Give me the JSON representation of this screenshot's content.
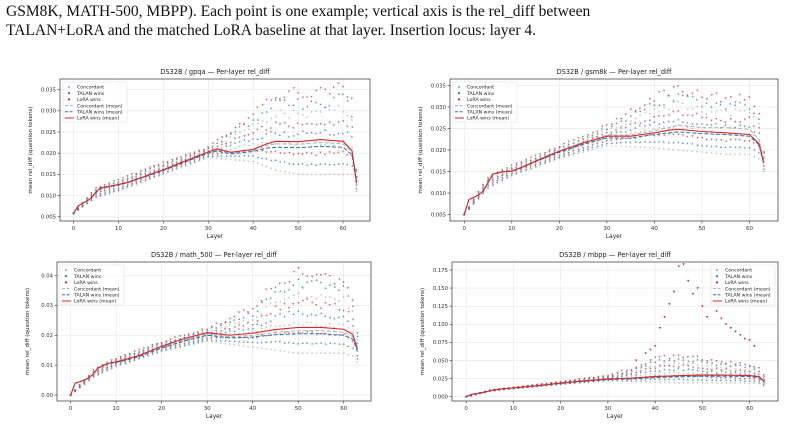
{
  "caption": {
    "line1": "GSM8K, MATH-500, MBPP). Each point is one example; vertical axis is the rel_diff between",
    "line2": "TALAN+LoRA and the matched LoRA baseline at that layer. Insertion locus: layer 4."
  },
  "colors": {
    "concordant": "#b0b0b0",
    "talan": "#1f77b4",
    "lora": "#d62728"
  },
  "chart_data": [
    {
      "type": "scatter",
      "title": "DS32B / gpqa — Per-layer rel_diff",
      "xlabel": "Layer",
      "ylabel": "mean rel_diff (question tokens)",
      "xlim": [
        -3,
        66
      ],
      "ylim": [
        0.004,
        0.0375
      ],
      "xticks": [
        0,
        10,
        20,
        30,
        40,
        50,
        60
      ],
      "yticks": [
        0.005,
        0.01,
        0.015,
        0.02,
        0.025,
        0.03,
        0.035
      ],
      "ytick_labels": [
        "0.005",
        "0.010",
        "0.015",
        "0.020",
        "0.025",
        "0.030",
        "0.035"
      ],
      "legend": {
        "position": "top-left",
        "entries": [
          "Concordant",
          "TALAN wins",
          "LoRA wins",
          "Concordant (mean)",
          "TALAN wins (mean)",
          "LoRA wins (mean)"
        ]
      },
      "grid": true,
      "series": [
        {
          "name": "Concordant (mean)",
          "x": [
            0,
            1,
            2,
            3,
            4,
            5,
            6,
            8,
            10,
            12,
            15,
            20,
            25,
            30,
            32,
            35,
            40,
            43,
            45,
            50,
            55,
            60,
            62,
            63
          ],
          "values": [
            0.0058,
            0.0075,
            0.0082,
            0.0087,
            0.0095,
            0.0108,
            0.0118,
            0.0122,
            0.0126,
            0.0131,
            0.0142,
            0.016,
            0.0181,
            0.0202,
            0.0208,
            0.02,
            0.0206,
            0.0218,
            0.0222,
            0.0221,
            0.0225,
            0.0222,
            0.0202,
            0.013
          ]
        },
        {
          "name": "TALAN wins (mean)",
          "x": [
            0,
            1,
            2,
            3,
            4,
            5,
            6,
            8,
            10,
            12,
            15,
            20,
            25,
            30,
            32,
            35,
            40,
            43,
            45,
            50,
            55,
            60,
            62,
            63
          ],
          "values": [
            0.0058,
            0.0075,
            0.0082,
            0.0087,
            0.0095,
            0.0107,
            0.0117,
            0.0121,
            0.0125,
            0.013,
            0.0141,
            0.0159,
            0.018,
            0.02,
            0.0205,
            0.0198,
            0.0204,
            0.0212,
            0.0214,
            0.0213,
            0.0216,
            0.0214,
            0.0196,
            0.0127
          ]
        },
        {
          "name": "LoRA wins (mean)",
          "x": [
            0,
            1,
            2,
            3,
            4,
            5,
            6,
            8,
            10,
            12,
            15,
            20,
            25,
            30,
            32,
            35,
            40,
            43,
            45,
            50,
            55,
            60,
            62,
            63
          ],
          "values": [
            0.0058,
            0.0075,
            0.0082,
            0.0087,
            0.0095,
            0.0108,
            0.0118,
            0.0122,
            0.0126,
            0.0131,
            0.0142,
            0.0161,
            0.0182,
            0.0203,
            0.021,
            0.0202,
            0.0209,
            0.0222,
            0.0228,
            0.0227,
            0.0232,
            0.0228,
            0.0206,
            0.0132
          ]
        }
      ],
      "spread": {
        "x": [
          0,
          5,
          10,
          20,
          30,
          40,
          45,
          50,
          55,
          60,
          62,
          63
        ],
        "low": [
          0.0058,
          0.0095,
          0.011,
          0.015,
          0.019,
          0.018,
          0.016,
          0.015,
          0.015,
          0.015,
          0.015,
          0.011
        ],
        "high": [
          0.0058,
          0.012,
          0.014,
          0.018,
          0.0215,
          0.03,
          0.035,
          0.0355,
          0.036,
          0.037,
          0.033,
          0.017
        ]
      }
    },
    {
      "type": "scatter",
      "title": "DS32B / gsm8k — Per-layer rel_diff",
      "xlabel": "Layer",
      "ylabel": "mean rel_diff (question tokens)",
      "xlim": [
        -3,
        66
      ],
      "ylim": [
        0.0035,
        0.0365
      ],
      "xticks": [
        0,
        10,
        20,
        30,
        40,
        50,
        60
      ],
      "yticks": [
        0.005,
        0.01,
        0.015,
        0.02,
        0.025,
        0.03,
        0.035
      ],
      "ytick_labels": [
        "0.005",
        "0.010",
        "0.015",
        "0.020",
        "0.025",
        "0.030",
        "0.035"
      ],
      "legend": {
        "position": "top-left",
        "entries": [
          "Concordant",
          "TALAN wins",
          "LoRA wins",
          "Concordant (mean)",
          "TALAN wins (mean)",
          "LoRA wins (mean)"
        ]
      },
      "grid": true,
      "series": [
        {
          "name": "Concordant (mean)",
          "x": [
            0,
            1,
            2,
            3,
            4,
            5,
            6,
            8,
            10,
            12,
            15,
            20,
            25,
            30,
            35,
            40,
            43,
            45,
            50,
            55,
            60,
            62,
            63
          ],
          "values": [
            0.005,
            0.0085,
            0.009,
            0.0095,
            0.0105,
            0.0125,
            0.0145,
            0.015,
            0.0152,
            0.016,
            0.0175,
            0.0198,
            0.0218,
            0.0235,
            0.0235,
            0.0245,
            0.0252,
            0.0258,
            0.0252,
            0.0252,
            0.0248,
            0.0225,
            0.0175
          ]
        },
        {
          "name": "TALAN wins (mean)",
          "x": [
            0,
            1,
            2,
            3,
            4,
            5,
            6,
            8,
            10,
            12,
            15,
            20,
            25,
            30,
            35,
            40,
            43,
            45,
            50,
            55,
            60,
            62,
            63
          ],
          "values": [
            0.005,
            0.0085,
            0.009,
            0.0095,
            0.0105,
            0.0124,
            0.0144,
            0.0149,
            0.0151,
            0.0158,
            0.0173,
            0.0195,
            0.0213,
            0.0228,
            0.0228,
            0.0236,
            0.024,
            0.0242,
            0.0238,
            0.0236,
            0.0232,
            0.0212,
            0.0168
          ]
        },
        {
          "name": "LoRA wins (mean)",
          "x": [
            0,
            1,
            2,
            3,
            4,
            5,
            6,
            8,
            10,
            12,
            15,
            20,
            25,
            30,
            35,
            40,
            43,
            45,
            50,
            55,
            60,
            62,
            63
          ],
          "values": [
            0.005,
            0.0085,
            0.009,
            0.0095,
            0.0105,
            0.0124,
            0.0144,
            0.0149,
            0.0151,
            0.0159,
            0.0174,
            0.0197,
            0.0216,
            0.0232,
            0.0232,
            0.024,
            0.0246,
            0.0248,
            0.0243,
            0.024,
            0.0236,
            0.0215,
            0.017
          ]
        }
      ],
      "spread": {
        "x": [
          0,
          5,
          10,
          20,
          30,
          40,
          45,
          50,
          55,
          60,
          62,
          63
        ],
        "low": [
          0.005,
          0.011,
          0.014,
          0.018,
          0.021,
          0.0205,
          0.02,
          0.0195,
          0.019,
          0.019,
          0.018,
          0.015
        ],
        "high": [
          0.005,
          0.014,
          0.0165,
          0.021,
          0.026,
          0.033,
          0.0355,
          0.0335,
          0.033,
          0.033,
          0.03,
          0.02
        ]
      }
    },
    {
      "type": "scatter",
      "title": "DS32B / math_500 — Per-layer rel_diff",
      "xlabel": "Layer",
      "ylabel": "mean rel_diff (question tokens)",
      "xlim": [
        -3,
        66
      ],
      "ylim": [
        -0.002,
        0.0445
      ],
      "xticks": [
        0,
        10,
        20,
        30,
        40,
        50,
        60
      ],
      "yticks": [
        0,
        0.01,
        0.02,
        0.03,
        0.04
      ],
      "ytick_labels": [
        "0.00",
        "0.01",
        "0.02",
        "0.03",
        "0.04"
      ],
      "legend": {
        "position": "top-left",
        "entries": [
          "Concordant",
          "TALAN wins",
          "LoRA wins",
          "Concordant (mean)",
          "TALAN wins (mean)",
          "LoRA wins (mean)"
        ]
      },
      "grid": true,
      "series": [
        {
          "name": "Concordant (mean)",
          "x": [
            0,
            1,
            2,
            3,
            4,
            5,
            6,
            8,
            10,
            12,
            15,
            20,
            25,
            30,
            35,
            40,
            45,
            50,
            55,
            60,
            62,
            63
          ],
          "values": [
            0.0,
            0.004,
            0.0044,
            0.005,
            0.0058,
            0.007,
            0.009,
            0.0105,
            0.011,
            0.0118,
            0.013,
            0.016,
            0.0185,
            0.0205,
            0.0195,
            0.02,
            0.021,
            0.0215,
            0.0215,
            0.021,
            0.0195,
            0.015
          ]
        },
        {
          "name": "TALAN wins (mean)",
          "x": [
            0,
            1,
            2,
            3,
            4,
            5,
            6,
            8,
            10,
            12,
            15,
            20,
            25,
            30,
            35,
            40,
            45,
            50,
            55,
            60,
            62,
            63
          ],
          "values": [
            0.0,
            0.004,
            0.0044,
            0.005,
            0.0058,
            0.007,
            0.009,
            0.0104,
            0.0109,
            0.0116,
            0.0128,
            0.0157,
            0.0181,
            0.02,
            0.0191,
            0.0194,
            0.0202,
            0.0205,
            0.0205,
            0.02,
            0.0187,
            0.0146
          ]
        },
        {
          "name": "LoRA wins (mean)",
          "x": [
            0,
            1,
            2,
            3,
            4,
            5,
            6,
            8,
            10,
            12,
            15,
            20,
            25,
            30,
            35,
            40,
            45,
            50,
            55,
            60,
            62,
            63
          ],
          "values": [
            0.0,
            0.004,
            0.0044,
            0.005,
            0.0058,
            0.007,
            0.009,
            0.0105,
            0.0111,
            0.0119,
            0.0132,
            0.0163,
            0.0189,
            0.0209,
            0.02,
            0.0207,
            0.0219,
            0.0226,
            0.0226,
            0.022,
            0.0203,
            0.0155
          ]
        }
      ],
      "spread": {
        "x": [
          0,
          5,
          10,
          20,
          30,
          40,
          45,
          50,
          55,
          60,
          62,
          63
        ],
        "low": [
          0.0,
          0.006,
          0.0095,
          0.0145,
          0.018,
          0.016,
          0.015,
          0.014,
          0.014,
          0.014,
          0.013,
          0.011
        ],
        "high": [
          0.0,
          0.0085,
          0.0125,
          0.018,
          0.0225,
          0.03,
          0.039,
          0.0435,
          0.042,
          0.04,
          0.035,
          0.021
        ]
      }
    },
    {
      "type": "scatter",
      "title": "DS32B / mbpp — Per-layer rel_diff",
      "xlabel": "Layer",
      "ylabel": "mean rel_diff (question tokens)",
      "xlim": [
        -3,
        66
      ],
      "ylim": [
        -0.006,
        0.186
      ],
      "xticks": [
        0,
        10,
        20,
        30,
        40,
        50,
        60
      ],
      "yticks": [
        0,
        0.025,
        0.05,
        0.075,
        0.1,
        0.125,
        0.15,
        0.175
      ],
      "ytick_labels": [
        "0.000",
        "0.025",
        "0.050",
        "0.075",
        "0.100",
        "0.125",
        "0.150",
        "0.175"
      ],
      "legend": {
        "position": "top-right",
        "entries": [
          "Concordant",
          "TALAN wins",
          "LoRA wins",
          "Concordant (mean)",
          "TALAN wins (mean)",
          "LoRA wins (mean)"
        ]
      },
      "grid": true,
      "series": [
        {
          "name": "Concordant (mean)",
          "x": [
            0,
            1,
            2,
            3,
            4,
            5,
            6,
            8,
            10,
            15,
            20,
            25,
            30,
            35,
            40,
            45,
            50,
            55,
            60,
            62,
            63
          ],
          "values": [
            0.0,
            0.003,
            0.004,
            0.005,
            0.0065,
            0.008,
            0.0095,
            0.011,
            0.012,
            0.015,
            0.0185,
            0.0215,
            0.024,
            0.025,
            0.027,
            0.028,
            0.029,
            0.029,
            0.0285,
            0.027,
            0.021
          ]
        },
        {
          "name": "TALAN wins (mean)",
          "x": [
            0,
            1,
            2,
            3,
            4,
            5,
            6,
            8,
            10,
            15,
            20,
            25,
            30,
            35,
            40,
            45,
            50,
            55,
            60,
            62,
            63
          ],
          "values": [
            0.0,
            0.003,
            0.004,
            0.005,
            0.0065,
            0.008,
            0.0095,
            0.011,
            0.012,
            0.0148,
            0.0182,
            0.0211,
            0.0236,
            0.0246,
            0.0264,
            0.0273,
            0.0282,
            0.0282,
            0.0277,
            0.0262,
            0.0205
          ]
        },
        {
          "name": "LoRA wins (mean)",
          "x": [
            0,
            1,
            2,
            3,
            4,
            5,
            6,
            8,
            10,
            15,
            20,
            25,
            30,
            35,
            40,
            45,
            50,
            55,
            60,
            62,
            63
          ],
          "values": [
            0.0,
            0.003,
            0.004,
            0.005,
            0.0065,
            0.008,
            0.0095,
            0.011,
            0.012,
            0.0152,
            0.0188,
            0.0219,
            0.0245,
            0.0256,
            0.0278,
            0.029,
            0.03,
            0.0298,
            0.0292,
            0.0276,
            0.0214
          ]
        }
      ],
      "spread": {
        "x": [
          0,
          5,
          10,
          20,
          30,
          35,
          40,
          45,
          50,
          55,
          60,
          62,
          63
        ],
        "low": [
          0.0,
          0.0075,
          0.011,
          0.017,
          0.022,
          0.021,
          0.02,
          0.019,
          0.019,
          0.019,
          0.019,
          0.018,
          0.015
        ],
        "high": [
          0.0,
          0.009,
          0.013,
          0.021,
          0.03,
          0.04,
          0.055,
          0.06,
          0.055,
          0.05,
          0.045,
          0.04,
          0.03
        ]
      },
      "outliers": {
        "x": [
          36,
          38,
          39,
          40,
          41,
          42,
          43,
          44,
          45,
          46,
          47,
          48,
          49,
          50,
          51,
          52,
          53,
          54,
          55,
          56,
          57,
          58,
          59,
          60,
          61
        ],
        "values": [
          0.05,
          0.06,
          0.065,
          0.07,
          0.095,
          0.11,
          0.128,
          0.145,
          0.18,
          0.183,
          0.16,
          0.142,
          0.15,
          0.125,
          0.11,
          0.13,
          0.118,
          0.108,
          0.1,
          0.095,
          0.09,
          0.085,
          0.08,
          0.078,
          0.07
        ]
      }
    }
  ]
}
